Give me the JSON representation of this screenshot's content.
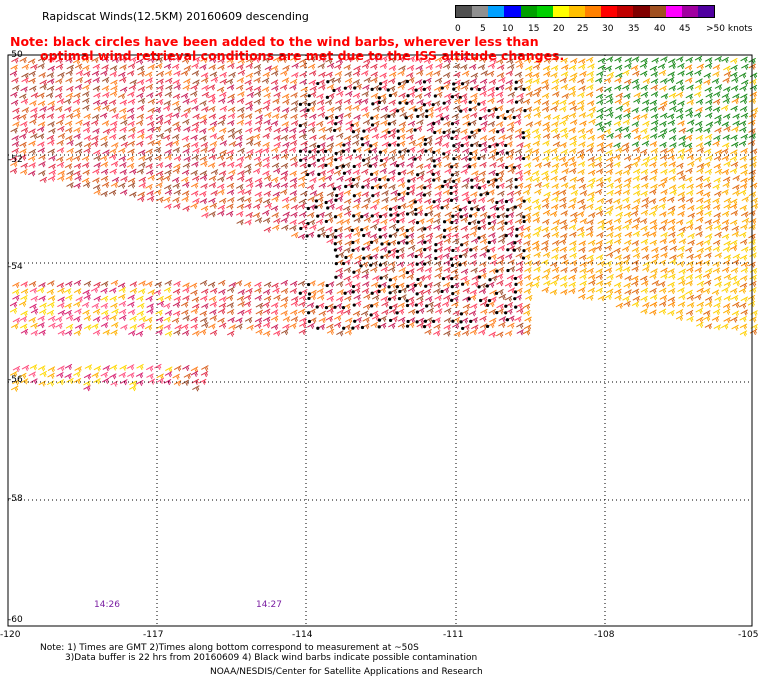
{
  "header": {
    "title": "Rapidscat Winds(12.5KM) 20160609 descending",
    "note_line1": "Note: black circles have been added to the wind barbs, wherever less than",
    "note_line2": "optimal wind retrieval conditions are met due to the ISS altitude changes."
  },
  "speed_scale": {
    "unit_label": ">50 knots",
    "ticks": [
      "0",
      "5",
      "10",
      "15",
      "20",
      "25",
      "30",
      "35",
      "40",
      "45"
    ],
    "colors": [
      "#505050",
      "#909090",
      "#00a0ff",
      "#0000ff",
      "#00a000",
      "#00d000",
      "#ffff00",
      "#ffc000",
      "#ff8000",
      "#ff0000",
      "#c00000",
      "#800000",
      "#a05020",
      "#ff00ff",
      "#a000a0",
      "#5000a0"
    ]
  },
  "map": {
    "lat_labels": [
      "-50",
      "-52",
      "-54",
      "-56",
      "-58",
      "-60"
    ],
    "lon_labels": [
      "-120",
      "-117",
      "-114",
      "-111",
      "-108",
      "-105"
    ],
    "pass_times": [
      "14:26",
      "14:27"
    ]
  },
  "footer": {
    "line1": "Note: 1) Times are GMT 2)Times along bottom correspond to measurement at ~50S",
    "line2": "3)Data buffer is 22 hrs from 20160609 4) Black wind barbs indicate possible contamination",
    "credit": "NOAA/NESDIS/Center for Satellite Applications and Research"
  }
}
